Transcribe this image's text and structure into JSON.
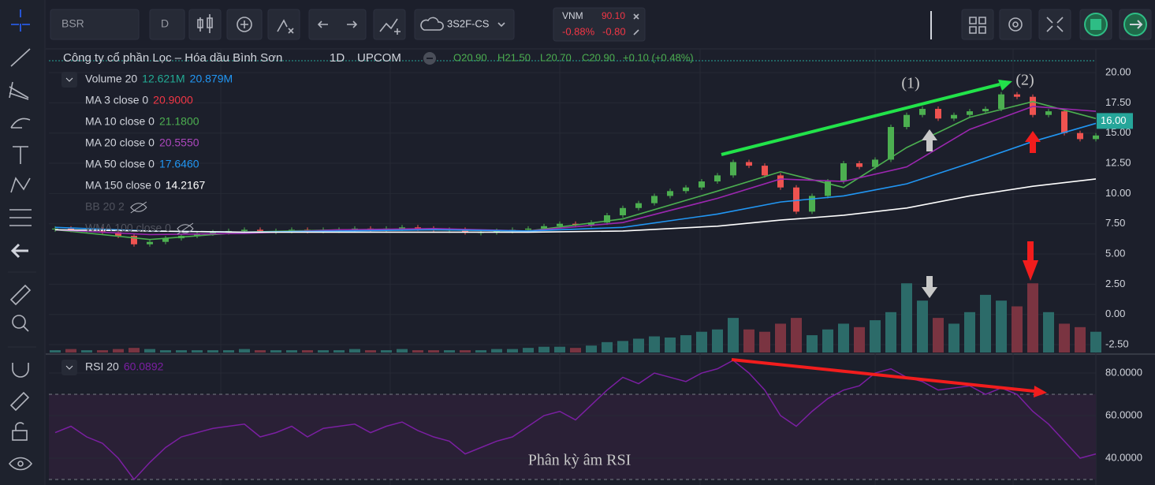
{
  "toolbar": {
    "symbol": "BSR",
    "interval": "D",
    "layout": "3S2F-CS",
    "watch": {
      "symbol": "VNM",
      "price": "90.10",
      "change_pct": "-0.88%",
      "change": "-0.80"
    }
  },
  "legend": {
    "title": "Công ty cổ phần Lọc – Hóa dầu Bình Sơn",
    "timeframe": "1D",
    "exchange": "UPCOM",
    "open": "O20.90",
    "high": "H21.50",
    "low": "L20.70",
    "close": "C20.90",
    "change": "+0.10 (+0.48%)"
  },
  "studies": [
    {
      "name": "Volume 20",
      "readings": [
        "12.621M",
        "20.879M"
      ],
      "colors": [
        "#22ab94",
        "#2196f3"
      ]
    },
    {
      "name": "MA 3 close 0",
      "readings": [
        "20.9000"
      ],
      "colors": [
        "#f23645"
      ]
    },
    {
      "name": "MA 10 close 0",
      "readings": [
        "21.1800"
      ],
      "colors": [
        "#4caf50"
      ]
    },
    {
      "name": "MA 20 close 0",
      "readings": [
        "20.5550"
      ],
      "colors": [
        "#ab47bc"
      ]
    },
    {
      "name": "MA 50 close 0",
      "readings": [
        "17.6460"
      ],
      "colors": [
        "#2196f3"
      ]
    },
    {
      "name": "MA 150 close 0",
      "readings": [
        "14.2167"
      ],
      "colors": [
        "#ffffff"
      ]
    },
    {
      "name": "BB 20 2",
      "readings": [],
      "colors": [],
      "hidden": true
    },
    {
      "name": "WMA 100 close 0",
      "readings": [],
      "colors": [],
      "hidden": true
    }
  ],
  "rsi_study": {
    "name": "RSI 20",
    "reading": "60.0892",
    "color": "#7b1fa2"
  },
  "annotations": [
    "(1)",
    "(2)",
    "Phân kỳ âm RSI"
  ],
  "chart_data": [
    {
      "type": "candlestick",
      "up_color": "#4caf50",
      "down_color": "#ef5350",
      "close": [
        7.1,
        7.0,
        7.0,
        6.8,
        6.5,
        5.8,
        6.0,
        6.3,
        6.5,
        6.7,
        6.8,
        6.9,
        7.0,
        6.9,
        6.9,
        7.0,
        6.9,
        7.0,
        7.0,
        7.1,
        7.0,
        7.1,
        7.2,
        7.1,
        7.0,
        7.0,
        6.8,
        6.8,
        6.9,
        7.0,
        7.1,
        7.3,
        7.5,
        7.4,
        7.6,
        8.2,
        8.8,
        9.2,
        9.8,
        10.2,
        10.5,
        11.0,
        11.5,
        12.6,
        12.3,
        11.5,
        10.5,
        8.5,
        9.8,
        11.0,
        12.5,
        12.2,
        12.8,
        15.5,
        16.5,
        17.0,
        16.2,
        16.5,
        16.8,
        17.0,
        18.2,
        18.0,
        16.5,
        16.8,
        15.0,
        14.5,
        14.8
      ],
      "series": [
        {
          "color": "#4caf50",
          "x": [
            0,
            6,
            12,
            18,
            24,
            30,
            36,
            42,
            46,
            50,
            54,
            58,
            62,
            66
          ],
          "values": [
            7.0,
            6.2,
            6.8,
            7.0,
            7.0,
            6.9,
            7.9,
            10.2,
            11.8,
            10.5,
            13.8,
            16.3,
            17.6,
            16.2
          ]
        },
        {
          "color": "#9c27b0",
          "x": [
            0,
            6,
            12,
            18,
            24,
            30,
            36,
            42,
            46,
            50,
            54,
            58,
            62,
            66
          ],
          "values": [
            7.0,
            6.6,
            6.7,
            7.0,
            7.1,
            6.9,
            7.6,
            9.6,
            11.2,
            11.0,
            12.2,
            15.3,
            17.2,
            16.8
          ]
        },
        {
          "color": "#2196f3",
          "x": [
            0,
            6,
            12,
            18,
            24,
            30,
            36,
            42,
            46,
            50,
            54,
            58,
            62,
            66
          ],
          "values": [
            7.2,
            6.9,
            6.8,
            6.9,
            7.0,
            6.9,
            7.2,
            8.3,
            9.3,
            9.8,
            10.8,
            12.5,
            14.3,
            15.8
          ]
        },
        {
          "color": "#ffffff",
          "x": [
            0,
            6,
            12,
            18,
            24,
            30,
            36,
            42,
            46,
            50,
            54,
            58,
            62,
            66
          ],
          "values": [
            7.0,
            6.9,
            6.8,
            6.8,
            6.8,
            6.8,
            6.9,
            7.3,
            7.8,
            8.2,
            8.8,
            9.8,
            10.6,
            11.2
          ]
        }
      ],
      "ylim": [
        -3.15,
        21.96
      ],
      "yticks": [
        {
          "value": 20,
          "label": "20.00"
        },
        {
          "value": 17.5,
          "label": "17.50"
        },
        {
          "value": 15,
          "label": "15.00"
        },
        {
          "value": 12.5,
          "label": "12.50"
        },
        {
          "value": 10,
          "label": "10.00"
        },
        {
          "value": 7.5,
          "label": "7.50"
        },
        {
          "value": 5,
          "label": "5.00"
        },
        {
          "value": 2.5,
          "label": "2.50"
        },
        {
          "value": 0,
          "label": "0.00"
        },
        {
          "value": -2.5,
          "label": "-2.50"
        }
      ],
      "last_price": {
        "value": 16,
        "label": "16.00"
      },
      "last_price_color": "#26a69a",
      "grid": true
    },
    {
      "type": "bar",
      "up_color": "#2c6b69",
      "down_color": "#7a3441",
      "values": [
        2,
        3,
        2,
        2,
        3,
        4,
        3,
        2,
        2,
        2,
        2,
        2,
        3,
        2,
        2,
        2,
        2,
        2,
        2,
        3,
        2,
        2,
        3,
        2,
        2,
        2,
        2,
        2,
        3,
        3,
        4,
        5,
        5,
        4,
        6,
        9,
        10,
        12,
        14,
        13,
        15,
        18,
        20,
        30,
        20,
        18,
        25,
        30,
        15,
        20,
        25,
        22,
        28,
        35,
        60,
        45,
        30,
        25,
        35,
        50,
        45,
        40,
        60,
        35,
        25,
        22,
        18
      ],
      "ylim": [
        0,
        80
      ]
    },
    {
      "type": "line",
      "color": "#7b1fa2",
      "band_color": "#2a2036",
      "values": [
        52,
        55,
        50,
        47,
        40,
        30,
        38,
        45,
        50,
        52,
        54,
        55,
        56,
        50,
        52,
        55,
        50,
        54,
        55,
        56,
        52,
        55,
        57,
        53,
        50,
        48,
        42,
        45,
        48,
        50,
        55,
        60,
        62,
        58,
        65,
        72,
        78,
        75,
        80,
        78,
        76,
        80,
        82,
        86,
        80,
        72,
        60,
        55,
        62,
        68,
        72,
        74,
        80,
        82,
        78,
        76,
        72,
        73,
        74,
        70,
        73,
        70,
        62,
        56,
        48,
        40,
        42
      ],
      "ylim": [
        27.4,
        87.8
      ],
      "yticks": [
        {
          "value": 80,
          "label": "80.0000"
        },
        {
          "value": 60,
          "label": "60.0000"
        },
        {
          "value": 40,
          "label": "40.0000"
        }
      ],
      "levels": [
        30,
        70
      ]
    }
  ]
}
